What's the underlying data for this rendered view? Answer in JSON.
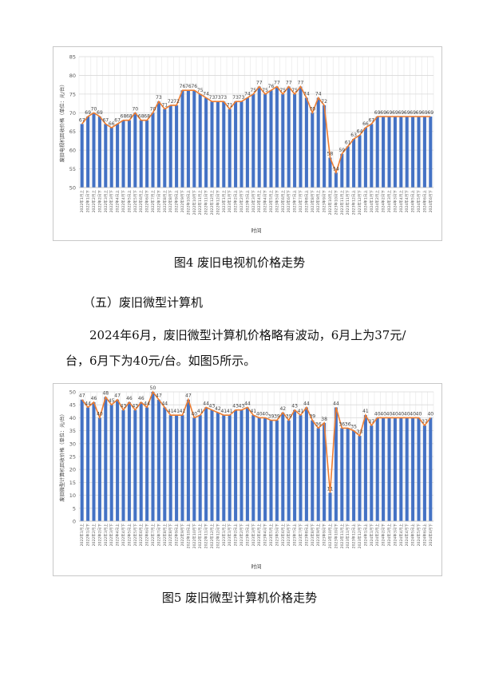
{
  "figure4": {
    "caption": "图4  废旧电视机价格走势",
    "chart_data": {
      "type": "bar",
      "bar_color": "#4472c4",
      "line_color": "#ed7d31",
      "xlabel": "时间",
      "ylabel": "废旧电视机回收价格（单位：元/台）",
      "ylim": [
        50,
        85
      ],
      "yticks": [
        50,
        55,
        60,
        65,
        70,
        75,
        80,
        85
      ],
      "grid": true,
      "categories": [
        "2022年1月上",
        "2022年1月下",
        "2022年2月上",
        "2022年2月下",
        "2022年3月上",
        "2022年3月下",
        "2022年4月上",
        "2022年4月下",
        "2022年5月上",
        "2022年5月下",
        "2022年6月上",
        "2022年6月下",
        "2022年7月上",
        "2022年7月下",
        "2022年8月上",
        "2022年8月下",
        "2022年9月上",
        "2022年9月下",
        "2022年10月上",
        "2022年10月下",
        "2022年11月上",
        "2022年11月下",
        "2022年12月上",
        "2022年12月下",
        "2023年1月上",
        "2023年1月下",
        "2023年2月上",
        "2023年2月下",
        "2023年3月上",
        "2023年3月下",
        "2023年4月上",
        "2023年4月下",
        "2023年5月上",
        "2023年5月下",
        "2023年6月上",
        "2023年6月下",
        "2023年7月上",
        "2023年7月下",
        "2023年8月上",
        "2023年8月下",
        "2023年9月上",
        "2023年9月下",
        "2023年10月上",
        "2023年10月下",
        "2023年11月上",
        "2023年11月下",
        "2023年12月上",
        "2023年12月下",
        "2024年1月上",
        "2024年1月下",
        "2024年2月上",
        "2024年2月下",
        "2024年3月上",
        "2024年3月下",
        "2024年4月上",
        "2024年4月下",
        "2024年5月上",
        "2024年5月下",
        "2024年6月上",
        "2024年6月下"
      ],
      "values": [
        67,
        69,
        70,
        69,
        67,
        66,
        67,
        68,
        68,
        70,
        68,
        68,
        70,
        73,
        71,
        72,
        72,
        76,
        76,
        76,
        75,
        74,
        73,
        73,
        73,
        71,
        73,
        73,
        74,
        75,
        77,
        75,
        76,
        77,
        75,
        77,
        75,
        77,
        74,
        70,
        74,
        72,
        58,
        54,
        59,
        61,
        63,
        64,
        66,
        67,
        69,
        69,
        69,
        69,
        69,
        69,
        69,
        69,
        69,
        69
      ]
    }
  },
  "section": {
    "heading": "（五）废旧微型计算机",
    "paragraph": "2024年6月，废旧微型计算机价格略有波动，6月上为37元/台，6月下为40元/台。如图5所示。"
  },
  "figure5": {
    "caption": "图5  废旧微型计算机价格走势",
    "chart_data": {
      "type": "bar",
      "bar_color": "#4472c4",
      "line_color": "#ed7d31",
      "xlabel": "时间",
      "ylabel": "废旧微型计算机回收价格（单位：元/台）",
      "ylim": [
        0,
        50
      ],
      "yticks": [
        0,
        5,
        10,
        15,
        20,
        25,
        30,
        35,
        40,
        45,
        50
      ],
      "grid": true,
      "categories": [
        "2022年1月上",
        "2022年1月下",
        "2022年2月上",
        "2022年2月下",
        "2022年3月上",
        "2022年3月下",
        "2022年4月上",
        "2022年4月下",
        "2022年5月上",
        "2022年5月下",
        "2022年6月上",
        "2022年6月下",
        "2022年7月上",
        "2022年7月下",
        "2022年8月上",
        "2022年8月下",
        "2022年9月上",
        "2022年9月下",
        "2022年10月上",
        "2022年10月下",
        "2022年11月上",
        "2022年11月下",
        "2022年12月上",
        "2022年12月下",
        "2023年1月上",
        "2023年1月下",
        "2023年2月上",
        "2023年2月下",
        "2023年3月上",
        "2023年3月下",
        "2023年4月上",
        "2023年4月下",
        "2023年5月上",
        "2023年5月下",
        "2023年6月上",
        "2023年6月下",
        "2023年7月上",
        "2023年7月下",
        "2023年8月上",
        "2023年8月下",
        "2023年9月上",
        "2023年9月下",
        "2023年10月上",
        "2023年10月下",
        "2023年11月上",
        "2023年11月下",
        "2023年12月上",
        "2023年12月下",
        "2024年1月上",
        "2024年1月下",
        "2024年2月上",
        "2024年2月下",
        "2024年3月上",
        "2024年3月下",
        "2024年4月上",
        "2024年4月下",
        "2024年5月上",
        "2024年5月下",
        "2024年6月上",
        "2024年6月下"
      ],
      "values": [
        47,
        44,
        46,
        40,
        48,
        45,
        47,
        43,
        46,
        43,
        46,
        44,
        50,
        47,
        44,
        41,
        41,
        41,
        47,
        40,
        41,
        44,
        43,
        42,
        41,
        41,
        43,
        43,
        44,
        41,
        40,
        40,
        39,
        39,
        42,
        39,
        43,
        41,
        44,
        39,
        36,
        38,
        11,
        44,
        36,
        36,
        35,
        33,
        41,
        37,
        40,
        40,
        40,
        40,
        40,
        40,
        40,
        40,
        37,
        40
      ]
    }
  }
}
